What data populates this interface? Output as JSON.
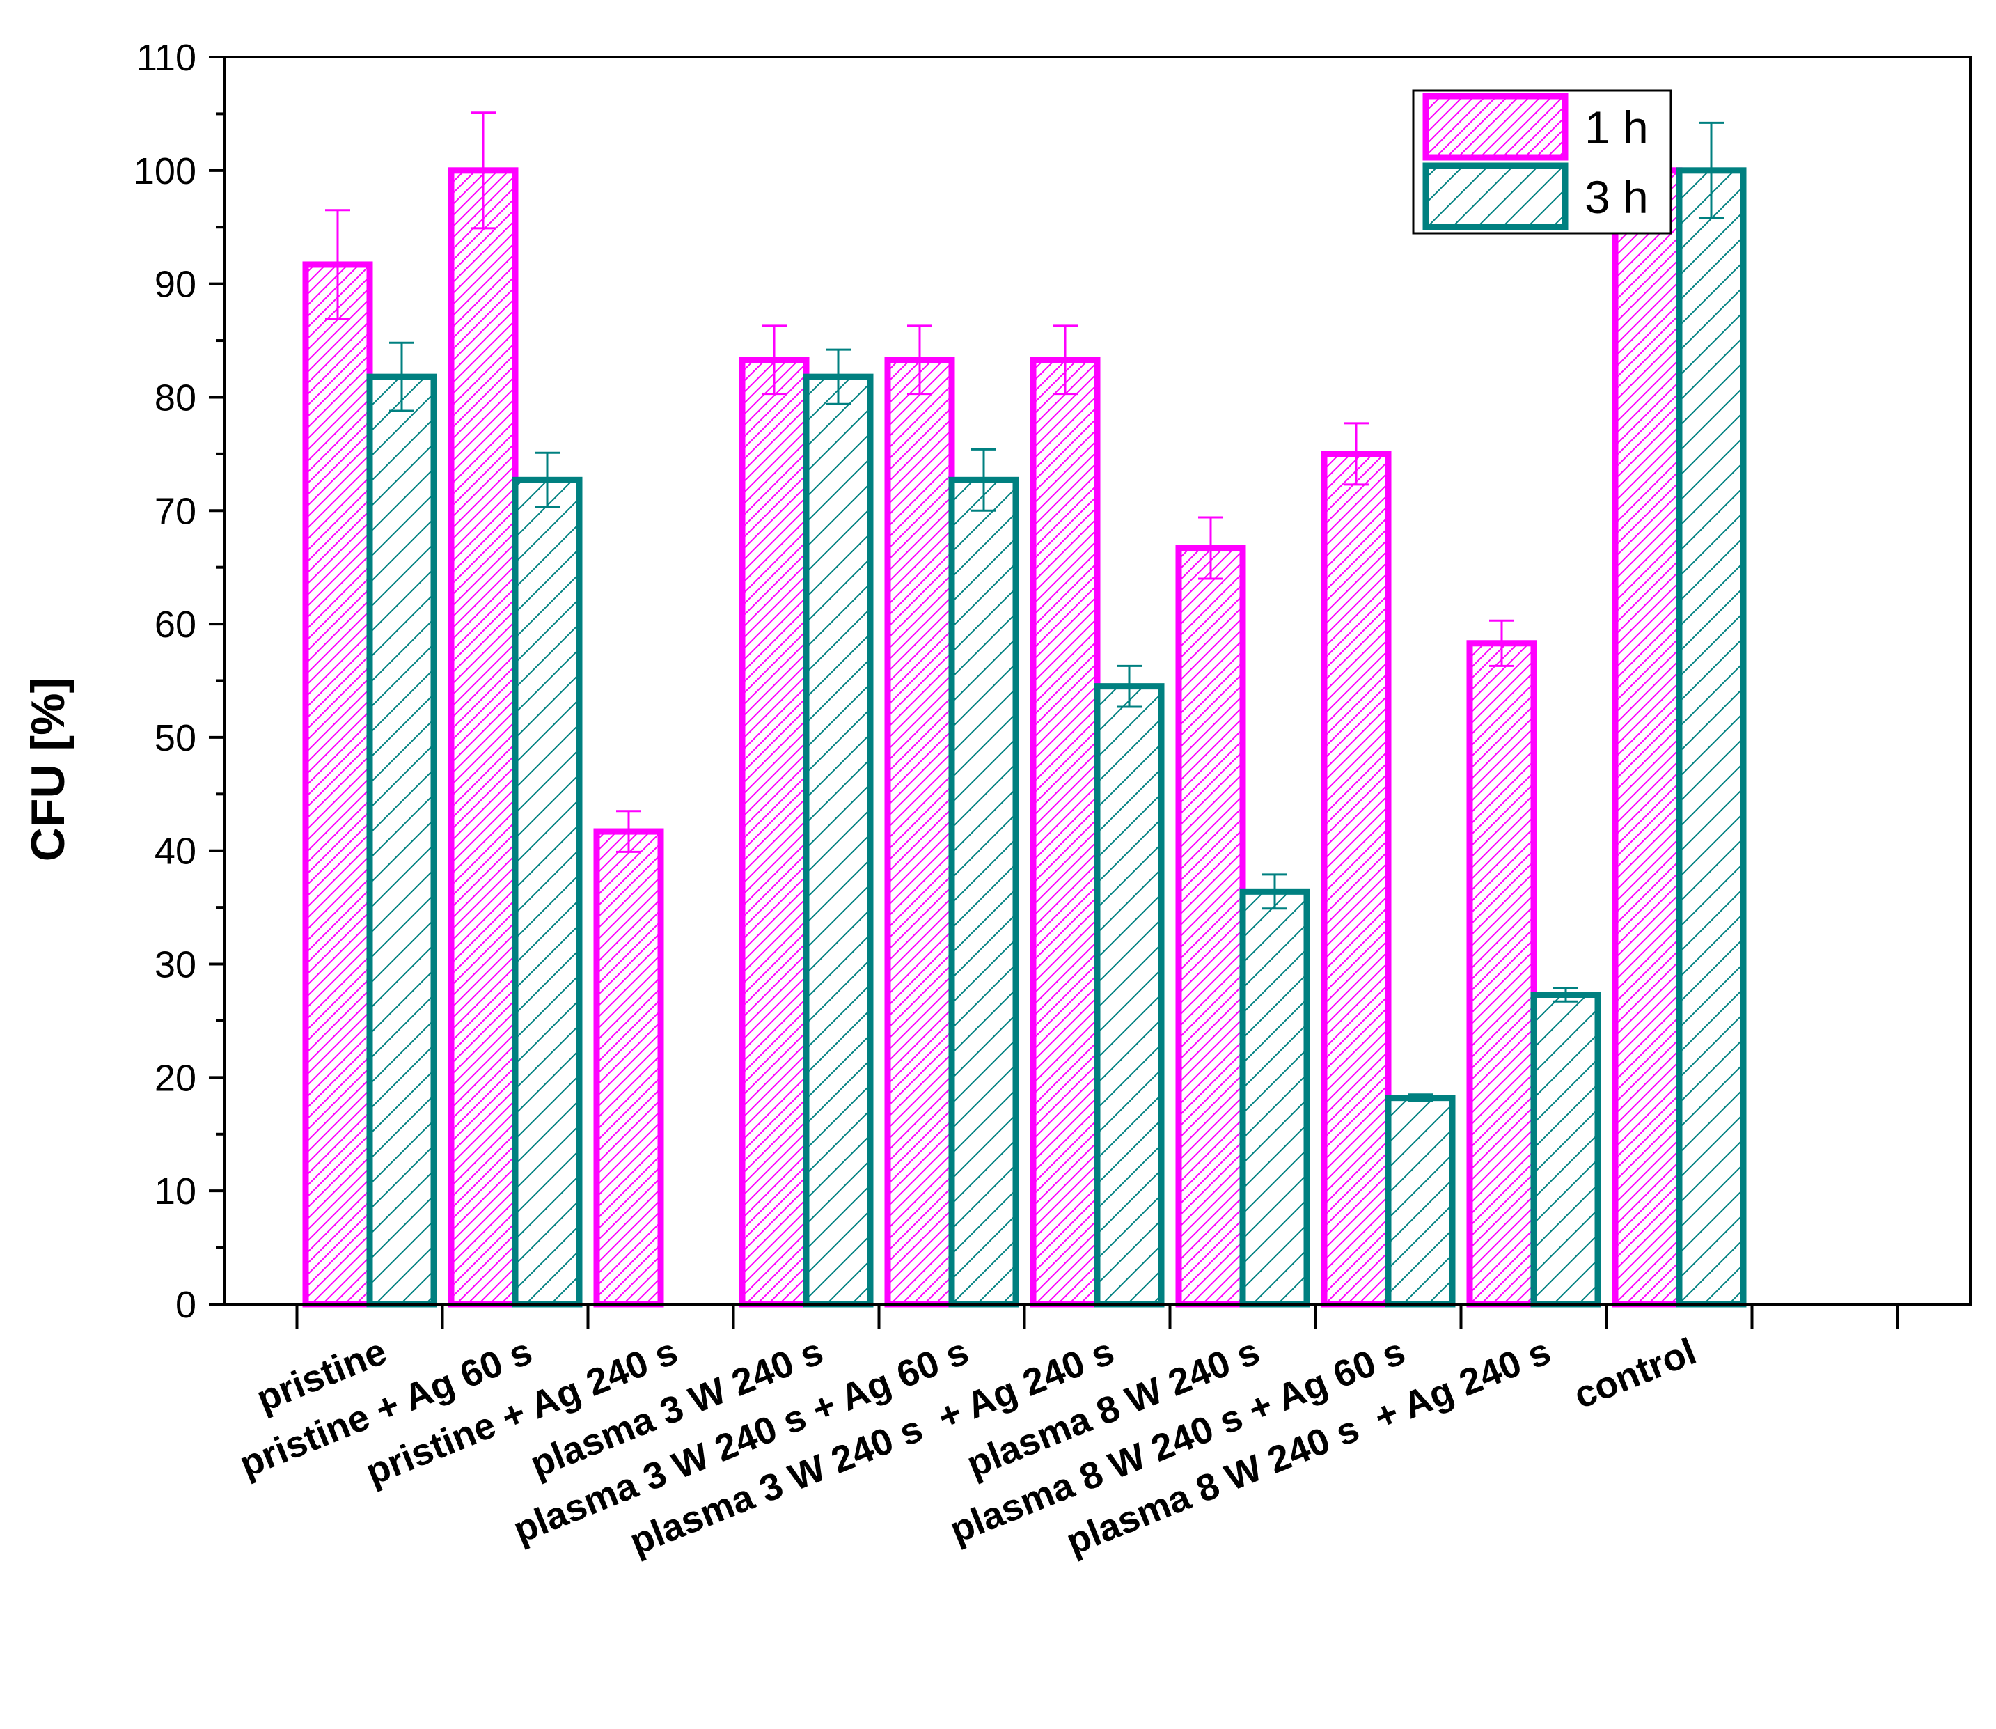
{
  "chart_data": {
    "type": "bar",
    "title": "",
    "xlabel": "",
    "ylabel": "CFU [%]",
    "ylim": [
      0,
      110
    ],
    "yticks": [
      0,
      10,
      20,
      30,
      40,
      50,
      60,
      70,
      80,
      90,
      100,
      110
    ],
    "grid": false,
    "legend_position": "top-right",
    "categories": [
      "pristine",
      "pristine + Ag 60 s",
      "pristine + Ag 240 s",
      "plasma 3 W 240 s",
      "plasma 3 W 240 s + Ag 60 s",
      "plasma 3 W 240 s  + Ag 240 s",
      "plasma 8 W 240 s",
      "plasma 8 W 240 s + Ag 60 s",
      "plasma 8 W 240 s  + Ag 240 s",
      "control"
    ],
    "series": [
      {
        "name": "1 h",
        "color": "#ff00ff",
        "hatch": "dense-diagonal",
        "values": [
          91.7,
          100,
          41.7,
          83.3,
          83.3,
          83.3,
          66.7,
          75.0,
          58.3,
          100
        ],
        "errors": [
          4.8,
          5.1,
          1.8,
          3.0,
          3.0,
          3.0,
          2.7,
          2.7,
          2.0,
          3.0
        ]
      },
      {
        "name": "3 h",
        "color": "#008080",
        "hatch": "sparse-diagonal",
        "values": [
          81.8,
          72.7,
          null,
          81.8,
          72.7,
          54.5,
          36.4,
          18.2,
          27.3,
          100
        ],
        "errors": [
          3.0,
          2.4,
          null,
          2.4,
          2.7,
          1.8,
          1.5,
          0.3,
          0.6,
          4.2
        ]
      }
    ]
  }
}
